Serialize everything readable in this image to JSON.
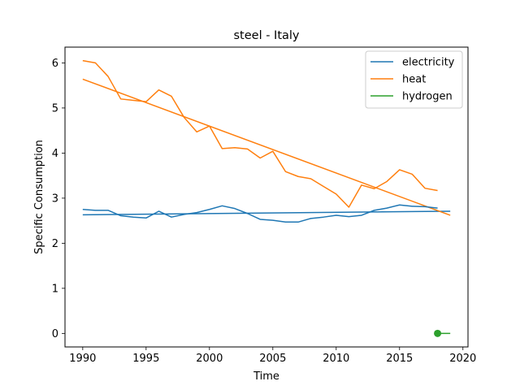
{
  "chart_data": {
    "type": "line",
    "title": "steel - Italy",
    "xlabel": "Time",
    "ylabel": "Specific Consumption",
    "xlim": [
      1988.6,
      2020.4
    ],
    "ylim": [
      -0.3,
      6.35
    ],
    "xticks": [
      1990,
      1995,
      2000,
      2005,
      2010,
      2015,
      2020
    ],
    "yticks": [
      0,
      1,
      2,
      3,
      4,
      5,
      6
    ],
    "legend_position": "top-right",
    "grid": false,
    "series": [
      {
        "name": "electricity",
        "color": "#1f77b4",
        "x": [
          1990,
          1991,
          1992,
          1993,
          1994,
          1995,
          1996,
          1997,
          1998,
          1999,
          2000,
          2001,
          2002,
          2003,
          2004,
          2005,
          2006,
          2007,
          2008,
          2009,
          2010,
          2011,
          2012,
          2013,
          2014,
          2015,
          2016,
          2017,
          2018
        ],
        "y": [
          2.75,
          2.73,
          2.73,
          2.61,
          2.58,
          2.56,
          2.71,
          2.58,
          2.64,
          2.68,
          2.75,
          2.83,
          2.77,
          2.66,
          2.53,
          2.51,
          2.47,
          2.47,
          2.55,
          2.58,
          2.62,
          2.59,
          2.62,
          2.73,
          2.78,
          2.85,
          2.82,
          2.81,
          2.78
        ]
      },
      {
        "name": "heat",
        "color": "#ff7f0e",
        "x": [
          1990,
          1991,
          1992,
          1993,
          1994,
          1995,
          1996,
          1997,
          1998,
          1999,
          2000,
          2001,
          2002,
          2003,
          2004,
          2005,
          2006,
          2007,
          2008,
          2009,
          2010,
          2011,
          2012,
          2013,
          2014,
          2015,
          2016,
          2017,
          2018
        ],
        "y": [
          6.05,
          6.0,
          5.7,
          5.2,
          5.17,
          5.14,
          5.4,
          5.26,
          4.79,
          4.47,
          4.6,
          4.1,
          4.12,
          4.09,
          3.89,
          4.04,
          3.59,
          3.48,
          3.43,
          3.26,
          3.09,
          2.8,
          3.29,
          3.21,
          3.37,
          3.63,
          3.53,
          3.22,
          3.17
        ]
      },
      {
        "name": "hydrogen",
        "color": "#2ca02c",
        "x": [
          2018,
          2019
        ],
        "y": [
          0.0,
          0.0
        ],
        "marker_at_first": true
      }
    ],
    "trend_lines": [
      {
        "series": "electricity",
        "color": "#1f77b4",
        "x": [
          1990,
          2019
        ],
        "y": [
          2.63,
          2.71
        ]
      },
      {
        "series": "heat",
        "color": "#ff7f0e",
        "x": [
          1990,
          2019
        ],
        "y": [
          5.64,
          2.62
        ]
      }
    ]
  }
}
